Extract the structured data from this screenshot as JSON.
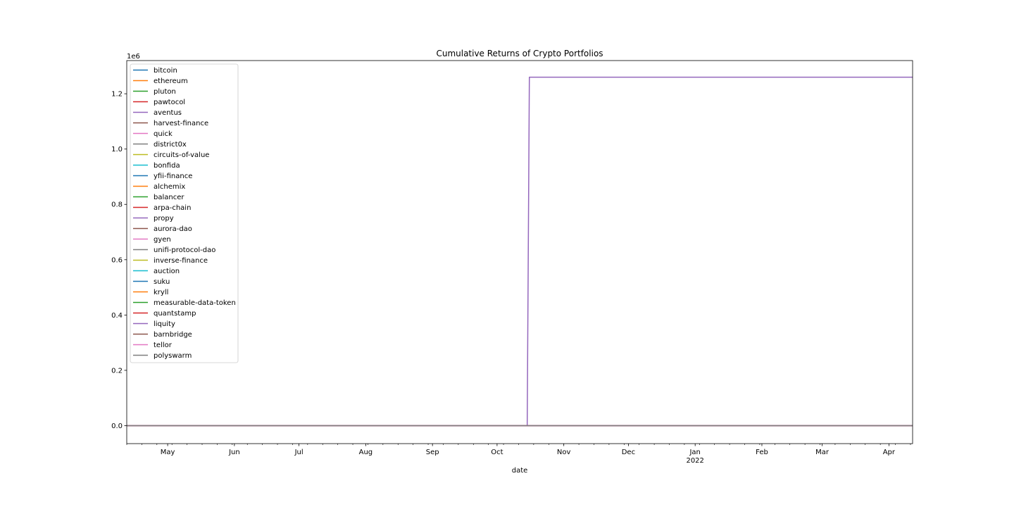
{
  "chart_data": {
    "type": "line",
    "title": "Cumulative Returns of Crypto Portfolios",
    "xlabel": "date",
    "ylabel": "",
    "y_offset_label": "1e6",
    "xlim": [
      "2021-04-12",
      "2022-04-12"
    ],
    "ylim": [
      -0.065,
      1.32
    ],
    "y_ticks": [
      0.0,
      0.2,
      0.4,
      0.6,
      0.8,
      1.0,
      1.2
    ],
    "y_tick_labels": [
      "0.0",
      "0.2",
      "0.4",
      "0.6",
      "0.8",
      "1.0",
      "1.2"
    ],
    "x_ticks": [
      {
        "date": "2021-05-01",
        "label": "May",
        "sublabel": ""
      },
      {
        "date": "2021-06-01",
        "label": "Jun",
        "sublabel": ""
      },
      {
        "date": "2021-07-01",
        "label": "Jul",
        "sublabel": ""
      },
      {
        "date": "2021-08-01",
        "label": "Aug",
        "sublabel": ""
      },
      {
        "date": "2021-09-01",
        "label": "Sep",
        "sublabel": ""
      },
      {
        "date": "2021-10-01",
        "label": "Oct",
        "sublabel": ""
      },
      {
        "date": "2021-11-01",
        "label": "Nov",
        "sublabel": ""
      },
      {
        "date": "2021-12-01",
        "label": "Dec",
        "sublabel": ""
      },
      {
        "date": "2022-01-01",
        "label": "Jan",
        "sublabel": "2022"
      },
      {
        "date": "2022-02-01",
        "label": "Feb",
        "sublabel": ""
      },
      {
        "date": "2022-03-01",
        "label": "Mar",
        "sublabel": ""
      },
      {
        "date": "2022-04-01",
        "label": "Apr",
        "sublabel": ""
      }
    ],
    "grid": false,
    "legend_position": "upper-left",
    "series": [
      {
        "name": "bitcoin",
        "color": "#1f77b4",
        "points": [
          [
            "2021-04-12",
            0.0
          ],
          [
            "2022-04-12",
            0.0
          ]
        ]
      },
      {
        "name": "ethereum",
        "color": "#ff7f0e",
        "points": [
          [
            "2021-04-12",
            0.0
          ],
          [
            "2022-04-12",
            0.0
          ]
        ]
      },
      {
        "name": "pluton",
        "color": "#2ca02c",
        "points": [
          [
            "2021-04-12",
            0.0
          ],
          [
            "2022-04-12",
            0.0
          ]
        ]
      },
      {
        "name": "pawtocol",
        "color": "#d62728",
        "points": [
          [
            "2021-04-12",
            0.0
          ],
          [
            "2022-04-12",
            0.0
          ]
        ]
      },
      {
        "name": "aventus",
        "color": "#9467bd",
        "points": [
          [
            "2021-04-12",
            0.0
          ],
          [
            "2021-10-15",
            0.0
          ],
          [
            "2021-10-16",
            1.26
          ],
          [
            "2022-04-12",
            1.26
          ]
        ]
      },
      {
        "name": "harvest-finance",
        "color": "#8c564b",
        "points": [
          [
            "2021-04-12",
            0.0
          ],
          [
            "2022-04-12",
            0.0
          ]
        ]
      },
      {
        "name": "quick",
        "color": "#e377c2",
        "points": [
          [
            "2021-04-12",
            0.0
          ],
          [
            "2022-04-12",
            0.0
          ]
        ]
      },
      {
        "name": "district0x",
        "color": "#7f7f7f",
        "points": [
          [
            "2021-04-12",
            0.0
          ],
          [
            "2022-04-12",
            0.0
          ]
        ]
      },
      {
        "name": "circuits-of-value",
        "color": "#bcbd22",
        "points": [
          [
            "2021-04-12",
            0.0
          ],
          [
            "2022-04-12",
            0.0
          ]
        ]
      },
      {
        "name": "bonfida",
        "color": "#17becf",
        "points": [
          [
            "2021-04-12",
            0.0
          ],
          [
            "2022-04-12",
            0.0
          ]
        ]
      },
      {
        "name": "yfii-finance",
        "color": "#1f77b4",
        "points": [
          [
            "2021-04-12",
            0.0
          ],
          [
            "2022-04-12",
            0.0
          ]
        ]
      },
      {
        "name": "alchemix",
        "color": "#ff7f0e",
        "points": [
          [
            "2021-04-12",
            0.0
          ],
          [
            "2022-04-12",
            0.0
          ]
        ]
      },
      {
        "name": "balancer",
        "color": "#2ca02c",
        "points": [
          [
            "2021-04-12",
            0.0
          ],
          [
            "2022-04-12",
            0.0
          ]
        ]
      },
      {
        "name": "arpa-chain",
        "color": "#d62728",
        "points": [
          [
            "2021-04-12",
            0.0
          ],
          [
            "2022-04-12",
            0.0
          ]
        ]
      },
      {
        "name": "propy",
        "color": "#9467bd",
        "points": [
          [
            "2021-04-12",
            0.0
          ],
          [
            "2022-04-12",
            0.0
          ]
        ]
      },
      {
        "name": "aurora-dao",
        "color": "#8c564b",
        "points": [
          [
            "2021-04-12",
            0.0
          ],
          [
            "2022-04-12",
            0.0
          ]
        ]
      },
      {
        "name": "gyen",
        "color": "#e377c2",
        "points": [
          [
            "2021-04-12",
            0.0
          ],
          [
            "2022-04-12",
            0.0
          ]
        ]
      },
      {
        "name": "unifi-protocol-dao",
        "color": "#7f7f7f",
        "points": [
          [
            "2021-04-12",
            0.0
          ],
          [
            "2022-04-12",
            0.0
          ]
        ]
      },
      {
        "name": "inverse-finance",
        "color": "#bcbd22",
        "points": [
          [
            "2021-04-12",
            0.0
          ],
          [
            "2022-04-12",
            0.0
          ]
        ]
      },
      {
        "name": "auction",
        "color": "#17becf",
        "points": [
          [
            "2021-04-12",
            0.0
          ],
          [
            "2022-04-12",
            0.0
          ]
        ]
      },
      {
        "name": "suku",
        "color": "#1f77b4",
        "points": [
          [
            "2021-04-12",
            0.0
          ],
          [
            "2022-04-12",
            0.0
          ]
        ]
      },
      {
        "name": "kryll",
        "color": "#ff7f0e",
        "points": [
          [
            "2021-04-12",
            0.0
          ],
          [
            "2022-04-12",
            0.0
          ]
        ]
      },
      {
        "name": "measurable-data-token",
        "color": "#2ca02c",
        "points": [
          [
            "2021-04-12",
            0.0
          ],
          [
            "2022-04-12",
            0.0
          ]
        ]
      },
      {
        "name": "quantstamp",
        "color": "#d62728",
        "points": [
          [
            "2021-04-12",
            0.0
          ],
          [
            "2022-04-12",
            0.0
          ]
        ]
      },
      {
        "name": "liquity",
        "color": "#9467bd",
        "points": [
          [
            "2021-04-12",
            0.0
          ],
          [
            "2022-04-12",
            0.0
          ]
        ]
      },
      {
        "name": "barnbridge",
        "color": "#8c564b",
        "points": [
          [
            "2021-04-12",
            0.0
          ],
          [
            "2022-04-12",
            0.0
          ]
        ]
      },
      {
        "name": "tellor",
        "color": "#e377c2",
        "points": [
          [
            "2021-04-12",
            0.0
          ],
          [
            "2022-04-12",
            0.0
          ]
        ]
      },
      {
        "name": "polyswarm",
        "color": "#7f7f7f",
        "points": [
          [
            "2021-04-12",
            0.0
          ],
          [
            "2022-04-12",
            0.0
          ]
        ]
      }
    ]
  }
}
